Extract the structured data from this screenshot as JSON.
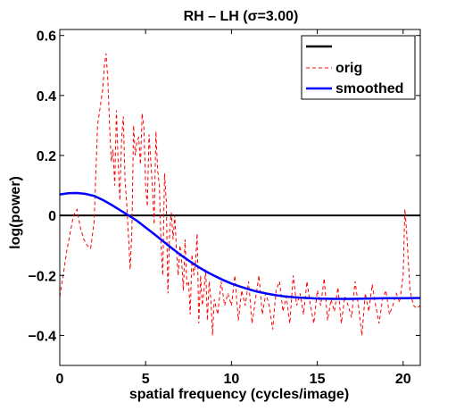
{
  "chart_data": {
    "type": "line",
    "title": "RH – LH (σ=3.00)",
    "xlabel": "spatial frequency (cycles/image)",
    "ylabel": "log(power)",
    "xlim": [
      0,
      21
    ],
    "ylim": [
      -0.5,
      0.62
    ],
    "x_ticks": [
      0,
      5,
      10,
      15,
      20
    ],
    "x_tick_labels": [
      "0",
      "5",
      "10",
      "15",
      "20"
    ],
    "y_ticks": [
      -0.4,
      -0.2,
      0,
      0.2,
      0.4,
      0.6
    ],
    "y_tick_labels": [
      "−0.4",
      "−0.2",
      "0",
      "0.2",
      "0.4",
      "0.6"
    ],
    "grid": false,
    "legend_position": "top-right",
    "legend": [
      {
        "label": "",
        "color": "#000000",
        "style": "solid"
      },
      {
        "label": "orig",
        "color": "#ff0000",
        "style": "dashed"
      },
      {
        "label": "smoothed",
        "color": "#0000ff",
        "style": "solid"
      }
    ],
    "series": [
      {
        "name": "",
        "color": "#000000",
        "style": "solid",
        "x": [
          0,
          21
        ],
        "y": [
          0,
          0
        ]
      },
      {
        "name": "orig",
        "color": "#ff0000",
        "style": "dashed",
        "x": [
          0,
          0.2,
          0.4,
          0.6,
          0.8,
          1.0,
          1.2,
          1.4,
          1.6,
          1.8,
          2.0,
          2.2,
          2.4,
          2.5,
          2.6,
          2.7,
          2.8,
          2.9,
          3.0,
          3.1,
          3.2,
          3.3,
          3.4,
          3.5,
          3.6,
          3.7,
          3.8,
          3.9,
          4.0,
          4.1,
          4.2,
          4.3,
          4.4,
          4.5,
          4.6,
          4.7,
          4.8,
          4.9,
          5.0,
          5.1,
          5.2,
          5.3,
          5.4,
          5.5,
          5.6,
          5.7,
          5.8,
          5.9,
          6.0,
          6.1,
          6.2,
          6.3,
          6.4,
          6.5,
          6.6,
          6.7,
          6.8,
          6.9,
          7.0,
          7.1,
          7.2,
          7.3,
          7.4,
          7.5,
          7.6,
          7.7,
          7.8,
          7.9,
          8.0,
          8.1,
          8.2,
          8.3,
          8.4,
          8.5,
          8.6,
          8.7,
          8.8,
          8.9,
          9.0,
          9.2,
          9.4,
          9.6,
          9.8,
          10.0,
          10.2,
          10.4,
          10.6,
          10.8,
          11.0,
          11.2,
          11.4,
          11.6,
          11.8,
          12.0,
          12.2,
          12.4,
          12.6,
          12.8,
          13.0,
          13.2,
          13.4,
          13.6,
          13.8,
          14.0,
          14.2,
          14.4,
          14.6,
          14.8,
          15.0,
          15.2,
          15.4,
          15.6,
          15.8,
          16.0,
          16.2,
          16.4,
          16.6,
          16.8,
          17.0,
          17.2,
          17.4,
          17.6,
          17.8,
          18.0,
          18.2,
          18.4,
          18.6,
          18.8,
          19.0,
          19.2,
          19.4,
          19.6,
          19.8,
          20.0,
          20.1,
          20.2,
          20.4,
          20.6,
          20.8,
          21.0
        ],
        "y": [
          -0.27,
          -0.2,
          -0.12,
          -0.06,
          0.0,
          0.02,
          -0.04,
          -0.08,
          -0.1,
          -0.11,
          -0.02,
          0.3,
          0.38,
          0.42,
          0.5,
          0.54,
          0.45,
          0.3,
          0.18,
          0.22,
          0.1,
          0.35,
          0.18,
          0.05,
          0.26,
          0.33,
          0.12,
          0.04,
          -0.07,
          -0.18,
          -0.05,
          0.3,
          0.2,
          0.25,
          0.26,
          0.17,
          0.34,
          0.29,
          0.1,
          0.03,
          0.27,
          0.18,
          0.09,
          -0.03,
          0.28,
          0.15,
          0.1,
          -0.1,
          -0.2,
          0.14,
          0.05,
          -0.26,
          -0.05,
          0.01,
          -0.08,
          0.0,
          -0.12,
          -0.2,
          -0.1,
          -0.15,
          -0.25,
          -0.08,
          -0.23,
          -0.22,
          -0.33,
          -0.13,
          -0.2,
          -0.16,
          -0.06,
          -0.36,
          -0.2,
          -0.3,
          -0.25,
          -0.18,
          -0.35,
          -0.22,
          -0.28,
          -0.4,
          -0.28,
          -0.33,
          -0.22,
          -0.3,
          -0.26,
          -0.3,
          -0.2,
          -0.35,
          -0.25,
          -0.3,
          -0.22,
          -0.36,
          -0.28,
          -0.2,
          -0.33,
          -0.26,
          -0.3,
          -0.38,
          -0.25,
          -0.22,
          -0.32,
          -0.27,
          -0.36,
          -0.2,
          -0.3,
          -0.26,
          -0.33,
          -0.22,
          -0.3,
          -0.36,
          -0.25,
          -0.3,
          -0.21,
          -0.35,
          -0.28,
          -0.32,
          -0.24,
          -0.36,
          -0.27,
          -0.3,
          -0.34,
          -0.22,
          -0.3,
          -0.4,
          -0.26,
          -0.32,
          -0.23,
          -0.3,
          -0.36,
          -0.28,
          -0.25,
          -0.33,
          -0.3,
          -0.26,
          -0.29,
          -0.2,
          0.02,
          -0.05,
          -0.25,
          -0.3,
          -0.31,
          -0.3
        ]
      },
      {
        "name": "smoothed",
        "color": "#0000ff",
        "style": "solid",
        "x": [
          0,
          0.5,
          1.0,
          1.5,
          2.0,
          2.5,
          3.0,
          3.5,
          4.0,
          4.5,
          5.0,
          5.5,
          6.0,
          6.5,
          7.0,
          7.5,
          8.0,
          8.5,
          9.0,
          9.5,
          10.0,
          10.5,
          11.0,
          11.5,
          12.0,
          12.5,
          13.0,
          13.5,
          14.0,
          15.0,
          16.0,
          17.0,
          18.0,
          19.0,
          20.0,
          21.0
        ],
        "y": [
          0.07,
          0.074,
          0.075,
          0.072,
          0.065,
          0.052,
          0.036,
          0.018,
          0.0,
          -0.018,
          -0.04,
          -0.062,
          -0.085,
          -0.108,
          -0.13,
          -0.15,
          -0.169,
          -0.186,
          -0.201,
          -0.215,
          -0.227,
          -0.237,
          -0.246,
          -0.254,
          -0.26,
          -0.265,
          -0.269,
          -0.272,
          -0.274,
          -0.277,
          -0.278,
          -0.278,
          -0.277,
          -0.276,
          -0.276,
          -0.275
        ]
      }
    ]
  }
}
